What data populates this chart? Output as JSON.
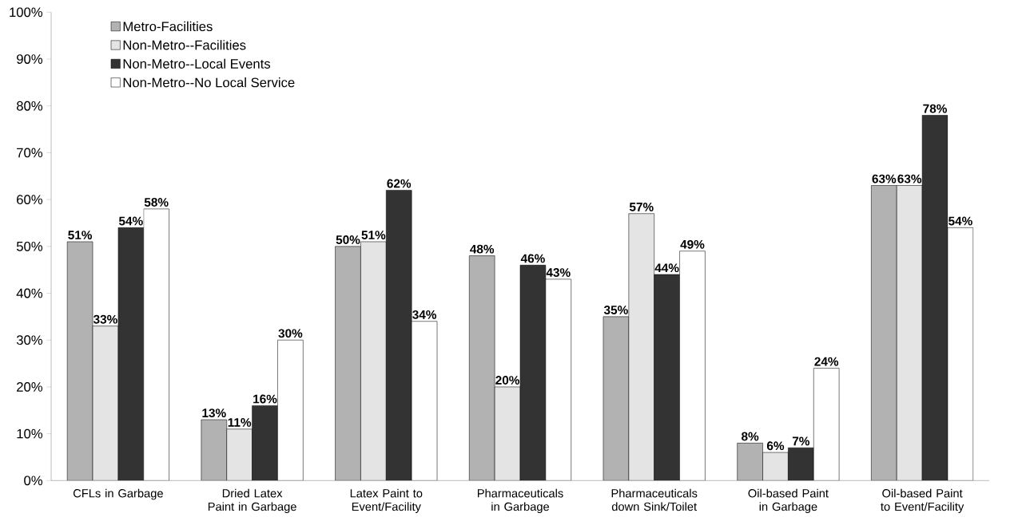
{
  "chart_data": {
    "type": "bar",
    "categories": [
      "CFLs in Garbage",
      "Dried Latex Paint in Garbage",
      "Latex Paint to Event/Facility",
      "Pharmaceuticals in Garbage",
      "Pharmaceuticals down Sink/Toilet",
      "Oil-based Paint in Garbage",
      "Oil-based Paint to Event/Facility"
    ],
    "series": [
      {
        "name": "Metro-Facilities",
        "color": "#b2b2b2",
        "values": [
          51,
          13,
          50,
          48,
          35,
          8,
          63
        ],
        "value_labels": [
          "51%",
          "13%",
          "50%",
          "48%",
          "35%",
          "8%",
          "63%"
        ]
      },
      {
        "name": "Non-Metro--Facilities",
        "color": "#e4e4e4",
        "values": [
          33,
          11,
          51,
          20,
          57,
          6,
          63
        ],
        "value_labels": [
          "33%",
          "11%",
          "51%",
          "20%",
          "57%",
          "6%",
          "63%"
        ]
      },
      {
        "name": "Non-Metro--Local Events",
        "color": "#333333",
        "values": [
          54,
          16,
          62,
          46,
          44,
          7,
          78
        ],
        "value_labels": [
          "54%",
          "16%",
          "62%",
          "46%",
          "44%",
          "7%",
          "78%"
        ]
      },
      {
        "name": "Non-Metro--No Local Service",
        "color": "#ffffff",
        "values": [
          58,
          30,
          34,
          43,
          49,
          24,
          54
        ],
        "value_labels": [
          "58%",
          "30%",
          "34%",
          "43%",
          "49%",
          "24%",
          "54%"
        ]
      }
    ],
    "ylim": [
      0,
      100
    ],
    "yticks": [
      {
        "value": 0,
        "label": "0%"
      },
      {
        "value": 10,
        "label": "10%"
      },
      {
        "value": 20,
        "label": "20%"
      },
      {
        "value": 30,
        "label": "30%"
      },
      {
        "value": 40,
        "label": "40%"
      },
      {
        "value": 50,
        "label": "50%"
      },
      {
        "value": 60,
        "label": "60%"
      },
      {
        "value": 70,
        "label": "70%"
      },
      {
        "value": 80,
        "label": "80%"
      },
      {
        "value": 90,
        "label": "90%"
      },
      {
        "value": 100,
        "label": "100%"
      }
    ],
    "legend": "top left",
    "grid": false
  }
}
